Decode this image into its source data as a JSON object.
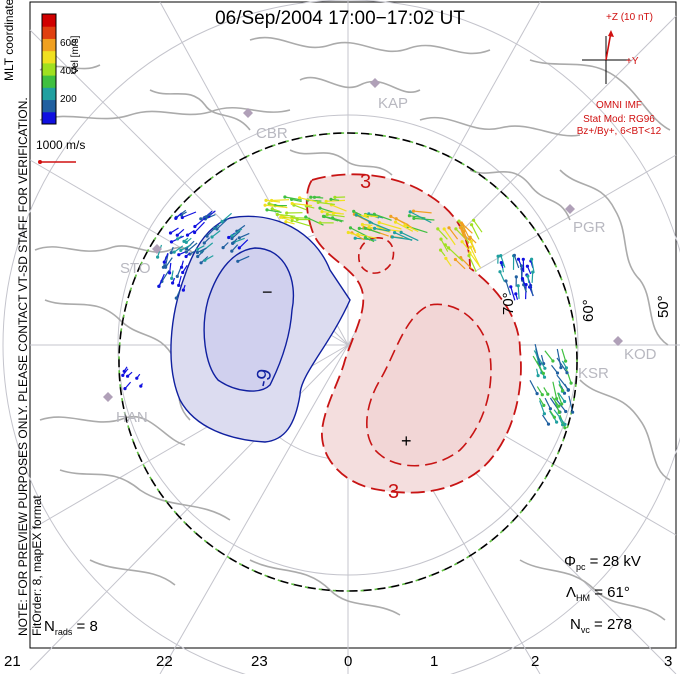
{
  "title": "06/Sep/2004 17:00−17:02 UT",
  "side_note": {
    "line1": "MLT coordinates",
    "line2": "NOTE: FOR PREVIEW PURPOSES ONLY. PLEASE CONTACT VT-SD STAFF FOR VERIFICATION.",
    "line3": "FitOrder: 8, mapEX format"
  },
  "colorbar": {
    "label": "Vel [m/s]",
    "ticks": [
      "600",
      "400",
      "200"
    ],
    "colors": [
      "#1010e0",
      "#2060a0",
      "#20a0a0",
      "#40c040",
      "#a0e020",
      "#f0e020",
      "#f0a020",
      "#e04010",
      "#d00000"
    ]
  },
  "scale_vector": {
    "label": "1000 m/s"
  },
  "imf": {
    "z_label": "+Z (10 nT)",
    "y_label": "+Y",
    "omni": "OMNI IMF",
    "stat_mod": "Stat Mod: RG96",
    "condition": "Bz+/By+, 6<BT<12"
  },
  "stations": [
    "KAP",
    "CBR",
    "PGR",
    "STO",
    "KOD",
    "KSR",
    "HAN"
  ],
  "lat_labels": [
    "70°",
    "60°",
    "50°"
  ],
  "contour_labels": [
    "3",
    "3",
    "-9"
  ],
  "cells": {
    "minus": "−",
    "plus": "+"
  },
  "stats": {
    "phi_sym": "Φ",
    "phi_sub": "pc",
    "phi_val": "= 28 kV",
    "lambda_sym": "Λ",
    "lambda_sub": "HM",
    "lambda_val": "= 61°",
    "nvc_sym": "N",
    "nvc_sub": "vc",
    "nvc_val": "= 278",
    "nrads_sym": "N",
    "nrads_sub": "rads",
    "nrads_val": "= 8"
  },
  "mlt_labels": [
    "21",
    "22",
    "23",
    "0",
    "1",
    "2",
    "3"
  ],
  "colors": {
    "positive": "#c81414",
    "negative": "#1020a0",
    "grid": "#c0c0c8",
    "land": "#a8a8a8",
    "hmb": "#000000"
  }
}
